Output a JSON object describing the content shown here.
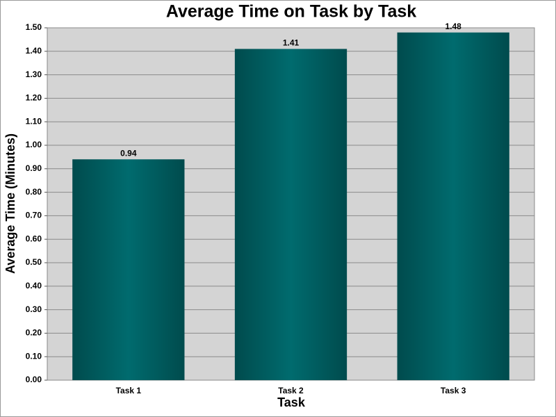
{
  "chart_data": {
    "type": "bar",
    "title": "Average Time on Task by Task",
    "x_label": "Task",
    "y_label": "Average Time (Minutes)",
    "categories": [
      "Task 1",
      "Task 2",
      "Task 3"
    ],
    "values": [
      0.94,
      1.41,
      1.48
    ],
    "color": "#006b6e",
    "ylim": [
      0,
      1.5
    ],
    "yticks": [
      {
        "value": 0,
        "label": "0.00"
      },
      {
        "value": 0.1,
        "label": "0.10"
      },
      {
        "value": 0.2,
        "label": "0.20"
      },
      {
        "value": 0.3,
        "label": "0.30"
      },
      {
        "value": 0.4,
        "label": "0.40"
      },
      {
        "value": 0.5,
        "label": "0.50"
      },
      {
        "value": 0.6,
        "label": "0.60"
      },
      {
        "value": 0.7,
        "label": "0.70"
      },
      {
        "value": 0.8,
        "label": "0.80"
      },
      {
        "value": 0.9,
        "label": "0.90"
      },
      {
        "value": 1.0,
        "label": "1.00"
      },
      {
        "value": 1.1,
        "label": "1.10"
      },
      {
        "value": 1.2,
        "label": "1.20"
      },
      {
        "value": 1.3,
        "label": "1.30"
      },
      {
        "value": 1.4,
        "label": "1.40"
      },
      {
        "value": 1.5,
        "label": "1.50"
      }
    ],
    "grid": true
  }
}
